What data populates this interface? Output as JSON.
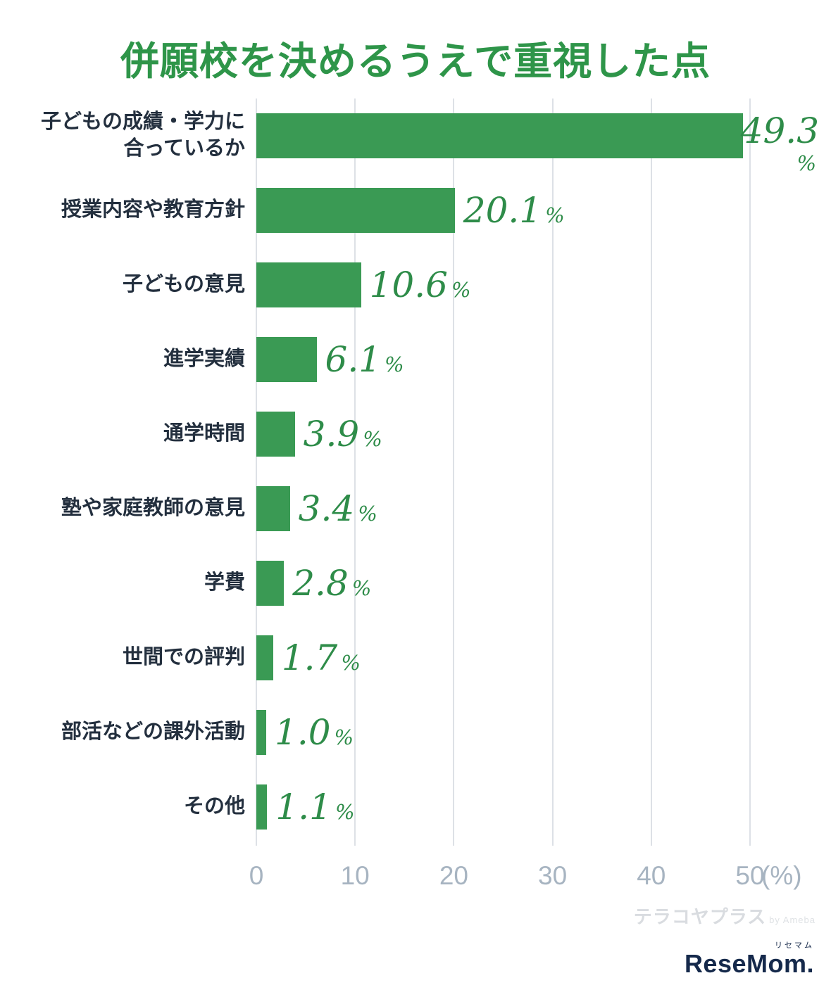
{
  "title": "併願校を決めるうえで重視した点",
  "chart_data": {
    "type": "bar",
    "orientation": "horizontal",
    "title": "併願校を決めるうえで重視した点",
    "categories": [
      "子どもの成績・学力に\n合っているか",
      "授業内容や教育方針",
      "子どもの意見",
      "進学実績",
      "通学時間",
      "塾や家庭教師の意見",
      "学費",
      "世間での評判",
      "部活などの課外活動",
      "その他"
    ],
    "values": [
      49.3,
      20.1,
      10.6,
      6.1,
      3.9,
      3.4,
      2.8,
      1.7,
      1.0,
      1.1
    ],
    "value_suffix": "%",
    "xlim": [
      0,
      50
    ],
    "x_ticks": [
      0,
      10,
      20,
      30,
      40,
      50
    ],
    "x_axis_unit": "(%)",
    "grid": true,
    "legend": "none",
    "bar_color": "#3a9a54",
    "title_color": "#2e9549",
    "value_label_color": "#2e8c49",
    "category_label_color": "#232f3e",
    "tick_label_color": "#a7b4c1",
    "gridline_color": "#dde1e6"
  },
  "watermark": {
    "text": "テラコヤプラス",
    "suffix": "by Ameba"
  },
  "logo": {
    "ruby": "リセマム",
    "text": "ReseMom."
  }
}
